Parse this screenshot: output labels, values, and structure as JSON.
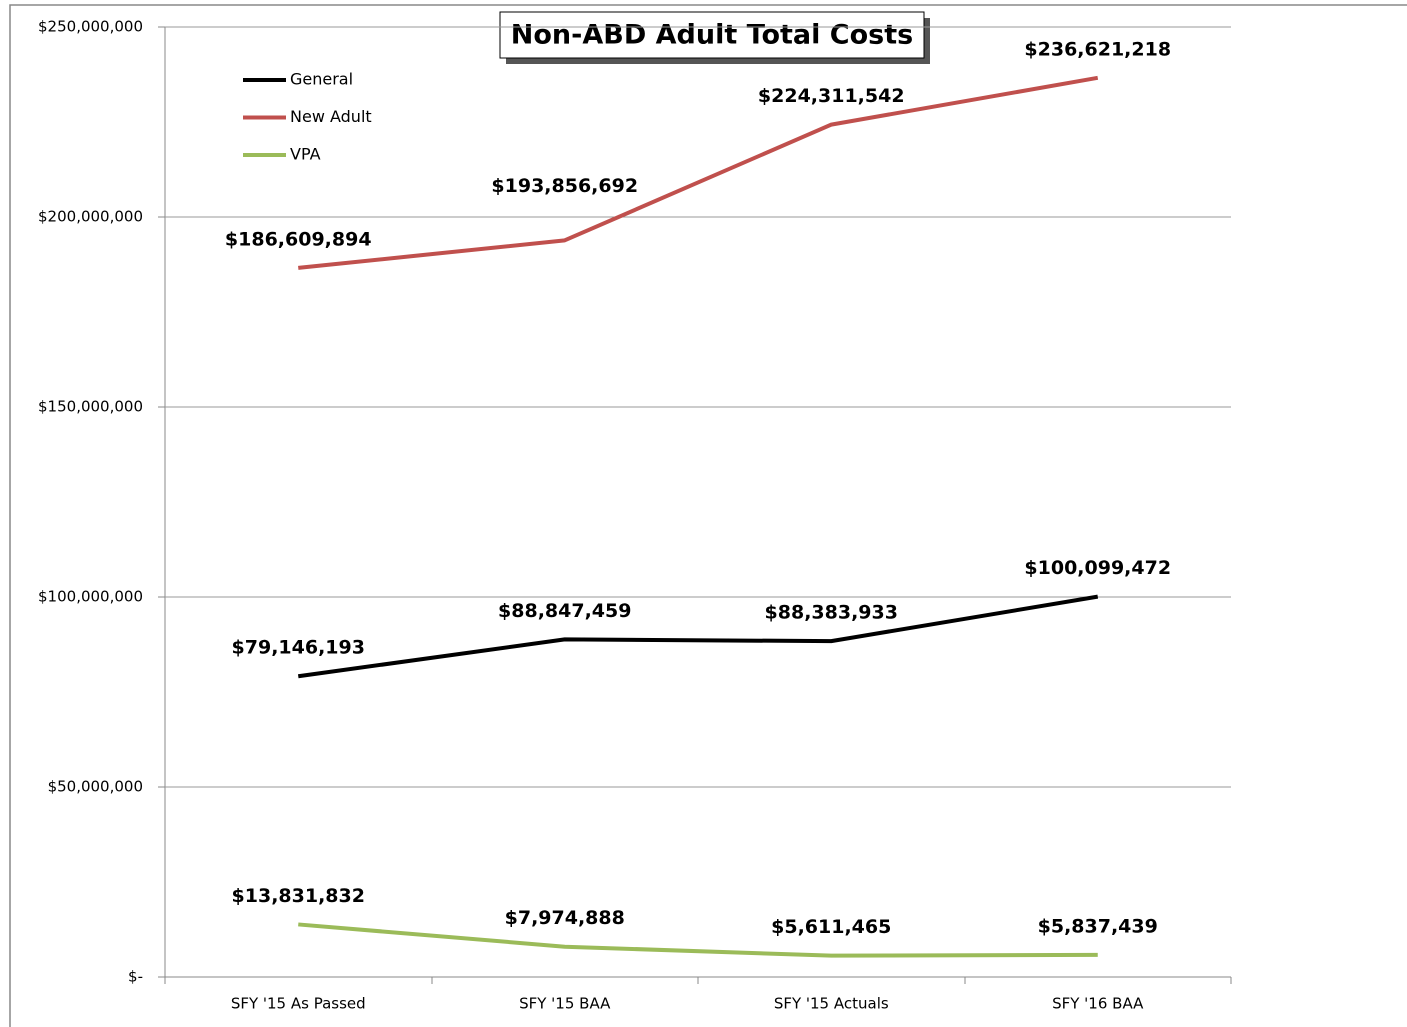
{
  "chart_data": {
    "type": "line",
    "title": "Non-ABD Adult Total Costs",
    "categories": [
      "SFY '15 As Passed",
      "SFY '15 BAA",
      "SFY '15 Actuals",
      "SFY '16 BAA"
    ],
    "series": [
      {
        "name": "General",
        "color": "#000000",
        "values": [
          79146193,
          88847459,
          88383933,
          100099472
        ],
        "value_labels": [
          "$79,146,193",
          "$88,847,459",
          "$88,383,933",
          "$100,099,472"
        ]
      },
      {
        "name": "New Adult",
        "color": "#c0504d",
        "values": [
          186609894,
          193856692,
          224311542,
          236621218
        ],
        "value_labels": [
          "$186,609,894",
          "$193,856,692",
          "$224,311,542",
          "$236,621,218"
        ]
      },
      {
        "name": "VPA",
        "color": "#9bbb59",
        "values": [
          13831832,
          7974888,
          5611465,
          5837439
        ],
        "value_labels": [
          "$13,831,832",
          "$7,974,888",
          "$5,611,465",
          "$5,837,439"
        ]
      }
    ],
    "ylim": [
      0,
      250000000
    ],
    "yticks": [
      {
        "value": 0,
        "label": "$-"
      },
      {
        "value": 50000000,
        "label": "$50,000,000"
      },
      {
        "value": 100000000,
        "label": "$100,000,000"
      },
      {
        "value": 150000000,
        "label": "$150,000,000"
      },
      {
        "value": 200000000,
        "label": "$200,000,000"
      },
      {
        "value": 250000000,
        "label": "$250,000,000"
      }
    ],
    "grid": true,
    "legend": "upper left"
  }
}
